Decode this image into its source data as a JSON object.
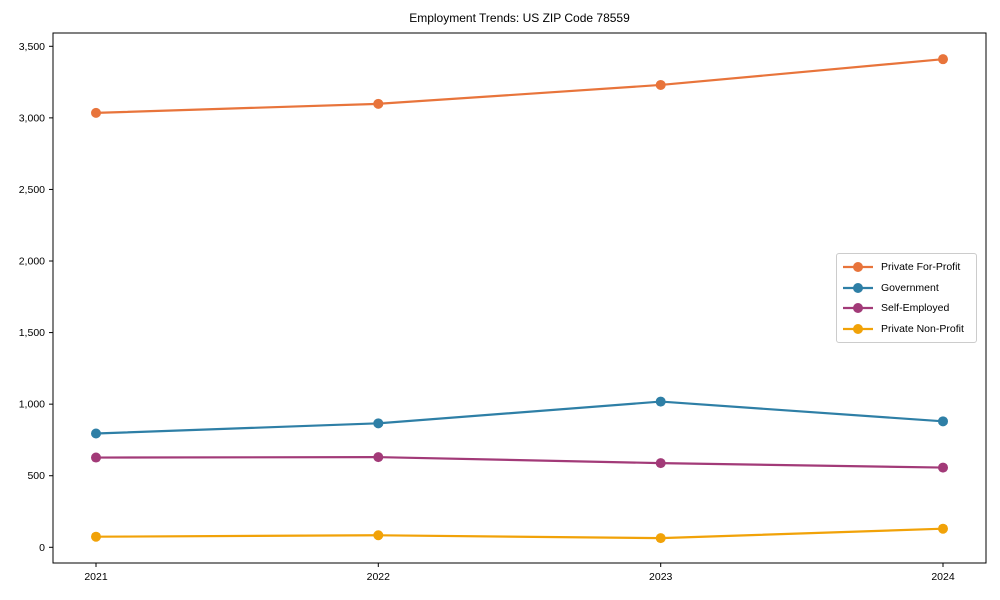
{
  "title": "Employment Trends: US ZIP Code 78559",
  "chart_data": {
    "type": "line",
    "title": "Employment Trends: US ZIP Code 78559",
    "xlabel": "",
    "ylabel": "",
    "categories": [
      "2021",
      "2022",
      "2023",
      "2024"
    ],
    "series": [
      {
        "name": "Private For-Profit",
        "color": "#e8743b",
        "values": [
          3035,
          3098,
          3230,
          3410
        ]
      },
      {
        "name": "Government",
        "color": "#2e7fa6",
        "values": [
          795,
          866,
          1018,
          880
        ]
      },
      {
        "name": "Self-Employed",
        "color": "#a23a78",
        "values": [
          627,
          630,
          588,
          557
        ]
      },
      {
        "name": "Private Non-Profit",
        "color": "#f1a208",
        "values": [
          74,
          84,
          64,
          130
        ]
      }
    ],
    "ylim": [
      0,
      3500
    ],
    "ytick_step": 500,
    "yticks": [
      "0",
      "500",
      "1,000",
      "1,500",
      "2,000",
      "2,500",
      "3,000",
      "3,500"
    ],
    "grid": false,
    "legend_position": "right-middle",
    "marker": "circle",
    "axis_color": "#000000",
    "tick_label_color": "#000000"
  }
}
